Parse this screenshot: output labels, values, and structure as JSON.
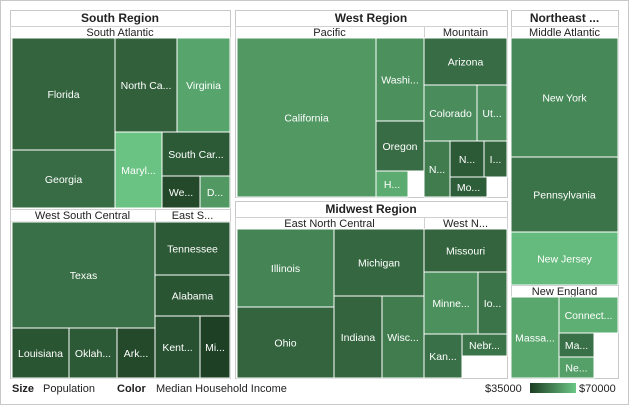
{
  "chart_data": {
    "type": "treemap",
    "size_measure": "Population",
    "color_measure": "Median Household Income",
    "color_scale": {
      "min_label": "$35000",
      "max_label": "$70000",
      "min": 35000,
      "max": 70000,
      "min_color": "#1c3d22",
      "max_color": "#6cc785"
    },
    "legend": {
      "size_label": "Size",
      "size_value": "Population",
      "color_label": "Color",
      "color_value": "Median Household Income"
    },
    "regions": [
      {
        "name": "South Region",
        "divisions": [
          {
            "name": "South Atlantic",
            "states": [
              {
                "label": "Florida",
                "income": 45000
              },
              {
                "label": "Georgia",
                "income": 47000
              },
              {
                "label": "North Ca...",
                "income": 44000
              },
              {
                "label": "Virginia",
                "income": 61000
              },
              {
                "label": "Maryl...",
                "income": 69000
              },
              {
                "label": "South Car...",
                "income": 42000
              },
              {
                "label": "We...",
                "income": 38000
              },
              {
                "label": "D...",
                "income": 58000
              }
            ]
          },
          {
            "name": "West South Central",
            "states": [
              {
                "label": "Texas",
                "income": 48000
              },
              {
                "label": "Louisiana",
                "income": 41000
              },
              {
                "label": "Oklah...",
                "income": 42000
              },
              {
                "label": "Ark...",
                "income": 38000
              }
            ]
          },
          {
            "name": "East S...",
            "states": [
              {
                "label": "Tennessee",
                "income": 42000
              },
              {
                "label": "Alabama",
                "income": 41000
              },
              {
                "label": "Kent...",
                "income": 40000
              },
              {
                "label": "Mi...",
                "income": 36000
              }
            ]
          }
        ]
      },
      {
        "name": "West Region",
        "divisions": [
          {
            "name": "Pacific",
            "states": [
              {
                "label": "California",
                "income": 58000
              },
              {
                "label": "Washi...",
                "income": 56000
              },
              {
                "label": "Oregon",
                "income": 47000
              },
              {
                "label": "H...",
                "income": 63000
              }
            ]
          },
          {
            "name": "Mountain",
            "states": [
              {
                "label": "Arizona",
                "income": 47000
              },
              {
                "label": "Colorado",
                "income": 55000
              },
              {
                "label": "Ut...",
                "income": 55000
              },
              {
                "label": "N...",
                "income": 51000
              },
              {
                "label": "N...",
                "income": 42000
              },
              {
                "label": "I...",
                "income": 45000
              },
              {
                "label": "Mo...",
                "income": 43000
              }
            ]
          }
        ]
      },
      {
        "name": "Midwest Region",
        "divisions": [
          {
            "name": "East North Central",
            "states": [
              {
                "label": "Illinois",
                "income": 53000
              },
              {
                "label": "Michigan",
                "income": 46000
              },
              {
                "label": "Ohio",
                "income": 45000
              },
              {
                "label": "Indiana",
                "income": 45000
              },
              {
                "label": "Wisc...",
                "income": 51000
              }
            ]
          },
          {
            "name": "West N...",
            "states": [
              {
                "label": "Missouri",
                "income": 45000
              },
              {
                "label": "Minne...",
                "income": 56000
              },
              {
                "label": "Io...",
                "income": 49000
              },
              {
                "label": "Kan...",
                "income": 48000
              },
              {
                "label": "Nebr...",
                "income": 49000
              }
            ]
          }
        ]
      },
      {
        "name": "Northeast ...",
        "divisions": [
          {
            "name": "Middle Atlantic",
            "states": [
              {
                "label": "New York",
                "income": 54000
              },
              {
                "label": "Pennsylvania",
                "income": 49000
              },
              {
                "label": "New Jersey",
                "income": 67000
              }
            ]
          },
          {
            "name": "New England",
            "states": [
              {
                "label": "Massa...",
                "income": 62000
              },
              {
                "label": "Connect...",
                "income": 64000
              },
              {
                "label": "Ma...",
                "income": 48000
              },
              {
                "label": "Ne...",
                "income": 60000
              }
            ]
          }
        ]
      }
    ]
  }
}
